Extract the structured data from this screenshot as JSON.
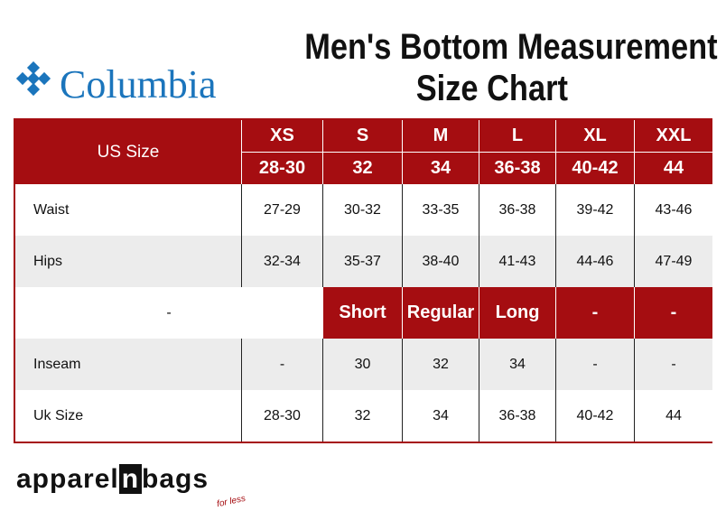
{
  "header": {
    "brand": "Columbia",
    "title_line1": "Men's Bottom Measurement",
    "title_line2": "Size Chart"
  },
  "table": {
    "corner": "US Size",
    "sizes": [
      "XS",
      "S",
      "M",
      "L",
      "XL",
      "XXL"
    ],
    "size_numbers": [
      "28-30",
      "32",
      "34",
      "36-38",
      "40-42",
      "44"
    ],
    "rows": [
      [
        "Waist",
        "27-29",
        "30-32",
        "33-35",
        "36-38",
        "39-42",
        "43-46"
      ],
      [
        "Hips",
        "32-34",
        "35-37",
        "38-40",
        "41-43",
        "44-46",
        "47-49"
      ]
    ],
    "inseam_header": [
      "-",
      "Short",
      "Regular",
      "Long",
      "-",
      "-"
    ],
    "rows2": [
      [
        "Inseam",
        "-",
        "30",
        "32",
        "34",
        "-",
        "-"
      ],
      [
        "Uk Size",
        "28-30",
        "32",
        "34",
        "36-38",
        "40-42",
        "44"
      ]
    ]
  },
  "footer": {
    "brand_prefix": "apparel",
    "brand_mid": "n",
    "brand_suffix": "bags",
    "tagline": "for less"
  }
}
